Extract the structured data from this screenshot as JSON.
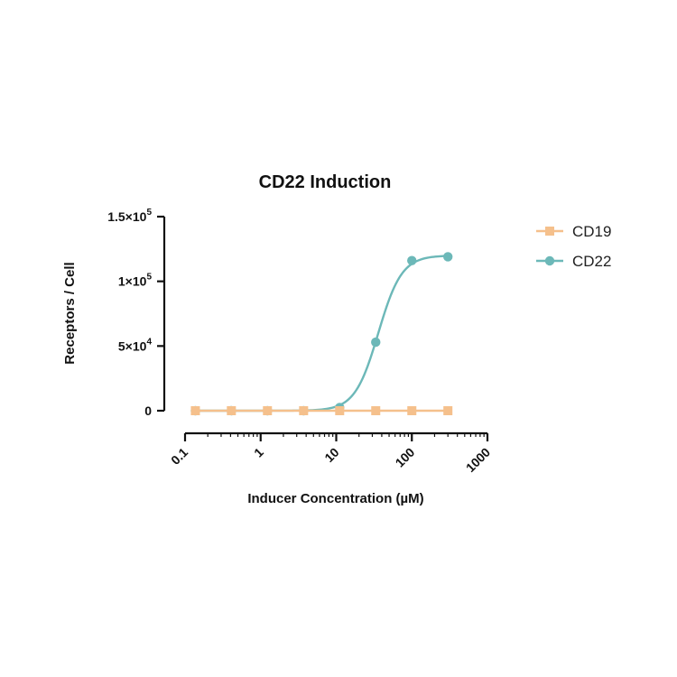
{
  "chart_data": {
    "type": "line",
    "title": "CD22 Induction",
    "xlabel": "Inducer Concentration (µM)",
    "ylabel": "Receptors / Cell",
    "xscale": "log",
    "xlim": [
      0.1,
      1000
    ],
    "ylim": [
      0,
      150000
    ],
    "x_ticks": [
      {
        "value": 0.1,
        "label": "0.1"
      },
      {
        "value": 1,
        "label": "1"
      },
      {
        "value": 10,
        "label": "10"
      },
      {
        "value": 100,
        "label": "100"
      },
      {
        "value": 1000,
        "label": "1000"
      }
    ],
    "y_ticks": [
      {
        "value": 0,
        "base": "0",
        "exp": ""
      },
      {
        "value": 50000,
        "base": "5×10",
        "exp": "4"
      },
      {
        "value": 100000,
        "base": "1×10",
        "exp": "5"
      },
      {
        "value": 150000,
        "base": "1.5×10",
        "exp": "5"
      }
    ],
    "legend_position": "right",
    "series": [
      {
        "name": "CD19",
        "color": "#f5c08c",
        "marker": "square",
        "x": [
          0.137,
          0.41,
          1.23,
          3.7,
          11.1,
          33.3,
          100,
          300
        ],
        "y": [
          0,
          0,
          0,
          0,
          0,
          0,
          0,
          0
        ]
      },
      {
        "name": "CD22",
        "color": "#6cb8b8",
        "marker": "circle",
        "x": [
          0.137,
          0.41,
          1.23,
          3.7,
          11.1,
          33.3,
          100,
          300
        ],
        "y": [
          0,
          0,
          0,
          0,
          2500,
          53000,
          116000,
          119000
        ],
        "fit": {
          "bottom": 0,
          "top": 120000,
          "ec50": 36,
          "hill": 2.8
        }
      }
    ]
  }
}
